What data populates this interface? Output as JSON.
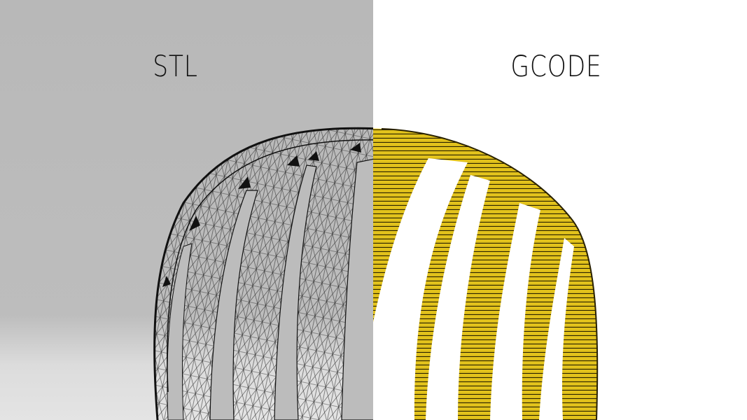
{
  "left_panel": {
    "title": "STL",
    "style": "wireframe mesh",
    "background_color": "#bababa",
    "line_color": "#111111"
  },
  "right_panel": {
    "title": "GCODE",
    "style": "layered toolpath",
    "background_color": "#ffffff",
    "fill_color": "#e2c21c",
    "line_color": "#1a1a1a"
  }
}
